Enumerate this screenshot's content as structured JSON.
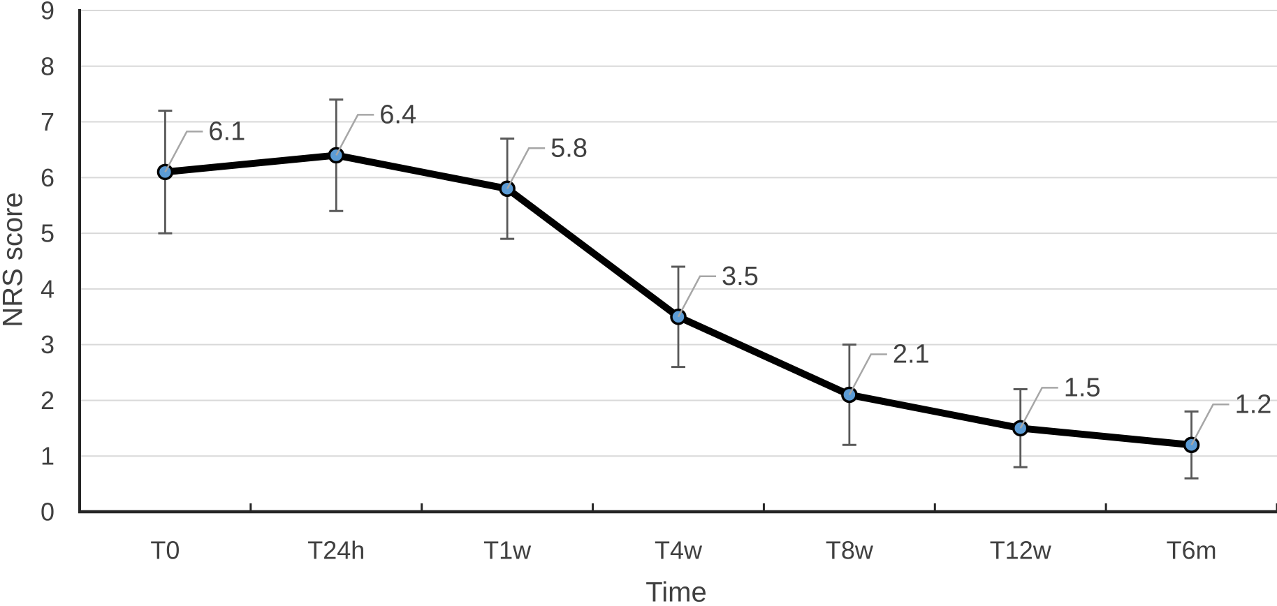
{
  "chart_data": {
    "type": "line",
    "title": "",
    "xlabel": "Time",
    "ylabel": "NRS score",
    "categories": [
      "T0",
      "T24h",
      "T1w",
      "T4w",
      "T8w",
      "T12w",
      "T6m"
    ],
    "series": [
      {
        "name": "NRS score",
        "values": [
          6.1,
          6.4,
          5.8,
          3.5,
          2.1,
          1.5,
          1.2
        ],
        "error_plus": [
          1.1,
          1.0,
          0.9,
          0.9,
          0.9,
          0.7,
          0.6
        ],
        "error_minus": [
          1.1,
          1.0,
          0.9,
          0.9,
          0.9,
          0.7,
          0.6
        ],
        "data_labels": [
          "6.1",
          "6.4",
          "5.8",
          "3.5",
          "2.1",
          "1.5",
          "1.2"
        ]
      }
    ],
    "ylim": [
      0,
      9
    ],
    "y_ticks": [
      0,
      1,
      2,
      3,
      4,
      5,
      6,
      7,
      8,
      9
    ],
    "grid": true,
    "legend": false,
    "error_bars": true,
    "marker": "circle"
  },
  "colors": {
    "marker_fill": "#5B9BD5",
    "marker_stroke": "#000000",
    "line": "#000000",
    "error_bar": "#595959",
    "leader_line": "#A6A6A6",
    "gridline": "#D9D9D9",
    "axis_line": "#262626",
    "text": "#404040",
    "background": "#FFFFFF"
  }
}
